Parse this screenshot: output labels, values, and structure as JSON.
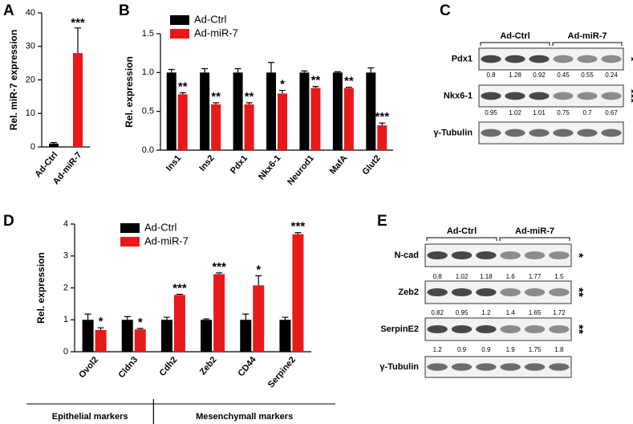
{
  "chart_data": [
    {
      "type": "bar",
      "panel": "A",
      "y_label": "Rel. miR-7 expression",
      "categories": [
        "Ad-Ctrl",
        "Ad-miR-7"
      ],
      "values": [
        1,
        28
      ],
      "errors": [
        0.3,
        7.5
      ],
      "colors": [
        "#000000",
        "#e8191b"
      ],
      "annotations": [
        null,
        "***"
      ],
      "ylim": [
        0,
        40
      ],
      "yticks": [
        0,
        10,
        20,
        30,
        40
      ]
    },
    {
      "type": "grouped_bar",
      "panel": "B",
      "y_label": "Rel. expression",
      "categories": [
        "Ins1",
        "Ins2",
        "Pdx1",
        "Nkx6-1",
        "Neurod1",
        "MafA",
        "Glut2"
      ],
      "series": [
        {
          "name": "Ad-Ctrl",
          "color": "#000000",
          "values": [
            1,
            1,
            1,
            1,
            1,
            1,
            1
          ],
          "errors": [
            0.04,
            0.05,
            0.05,
            0.13,
            0.02,
            0.01,
            0.06
          ]
        },
        {
          "name": "Ad-miR-7",
          "color": "#e8191b",
          "values": [
            0.72,
            0.59,
            0.59,
            0.73,
            0.8,
            0.8,
            0.32
          ],
          "errors": [
            0.02,
            0.02,
            0.02,
            0.04,
            0.02,
            0.01,
            0.03
          ],
          "annotations": [
            "**",
            "**",
            "**",
            "*",
            "**",
            "**",
            "***"
          ]
        }
      ],
      "ylim": [
        0,
        1.5
      ],
      "yticks": [
        {
          "value": 0,
          "label": "0.0"
        },
        {
          "value": 0.5,
          "label": "0.5"
        },
        {
          "value": 1,
          "label": "1.0"
        },
        {
          "value": 1.5,
          "label": "1.5"
        }
      ]
    },
    {
      "type": "grouped_bar",
      "panel": "D",
      "y_label": "Rel. expression",
      "categories": [
        "Ovol2",
        "Cldn3",
        "Cdh2",
        "Zeb2",
        "CD44",
        "Serpine2"
      ],
      "series": [
        {
          "name": "Ad-Ctrl",
          "color": "#000000",
          "values": [
            1,
            1,
            1,
            1,
            1,
            1
          ],
          "errors": [
            0.18,
            0.1,
            0.08,
            0.03,
            0.18,
            0.08
          ]
        },
        {
          "name": "Ad-miR-7",
          "color": "#e8191b",
          "values": [
            0.68,
            0.7,
            1.78,
            2.43,
            2.08,
            3.68
          ],
          "errors": [
            0.07,
            0.03,
            0.02,
            0.04,
            0.3,
            0.05
          ],
          "annotations": [
            "*",
            "*",
            "***",
            "***",
            "*",
            "***"
          ]
        }
      ],
      "group_labels": [
        "Epithelial markers",
        "Mesenchymall markers"
      ],
      "ylim": [
        0,
        4
      ],
      "yticks": [
        0,
        1,
        2,
        3,
        4
      ]
    }
  ],
  "blots": [
    {
      "panel": "C",
      "groups": [
        "Ad-Ctrl",
        "Ad-miR-7"
      ],
      "rows": [
        {
          "label": "Pdx1",
          "quant": [
            0.8,
            1.28,
            0.92,
            0.45,
            0.55,
            0.24
          ],
          "sig": "*"
        },
        {
          "label": "Nkx6-1",
          "quant": [
            0.95,
            1.02,
            1.01,
            0.75,
            0.7,
            0.67
          ],
          "sig": "***"
        },
        {
          "label": "γ-Tubulin"
        }
      ]
    },
    {
      "panel": "E",
      "groups": [
        "Ad-Ctrl",
        "Ad-miR-7"
      ],
      "rows": [
        {
          "label": "N-cad",
          "quant": [
            0.8,
            1.02,
            1.18,
            1.6,
            1.77,
            1.5
          ],
          "sig": "*"
        },
        {
          "label": "Zeb2",
          "quant": [
            0.82,
            0.95,
            1.2,
            1.4,
            1.65,
            1.72
          ],
          "sig": "**"
        },
        {
          "label": "SerpinE2",
          "quant": [
            1.2,
            0.9,
            0.9,
            1.9,
            1.75,
            1.8
          ],
          "sig": "**"
        },
        {
          "label": "γ-Tubulin"
        }
      ]
    }
  ]
}
